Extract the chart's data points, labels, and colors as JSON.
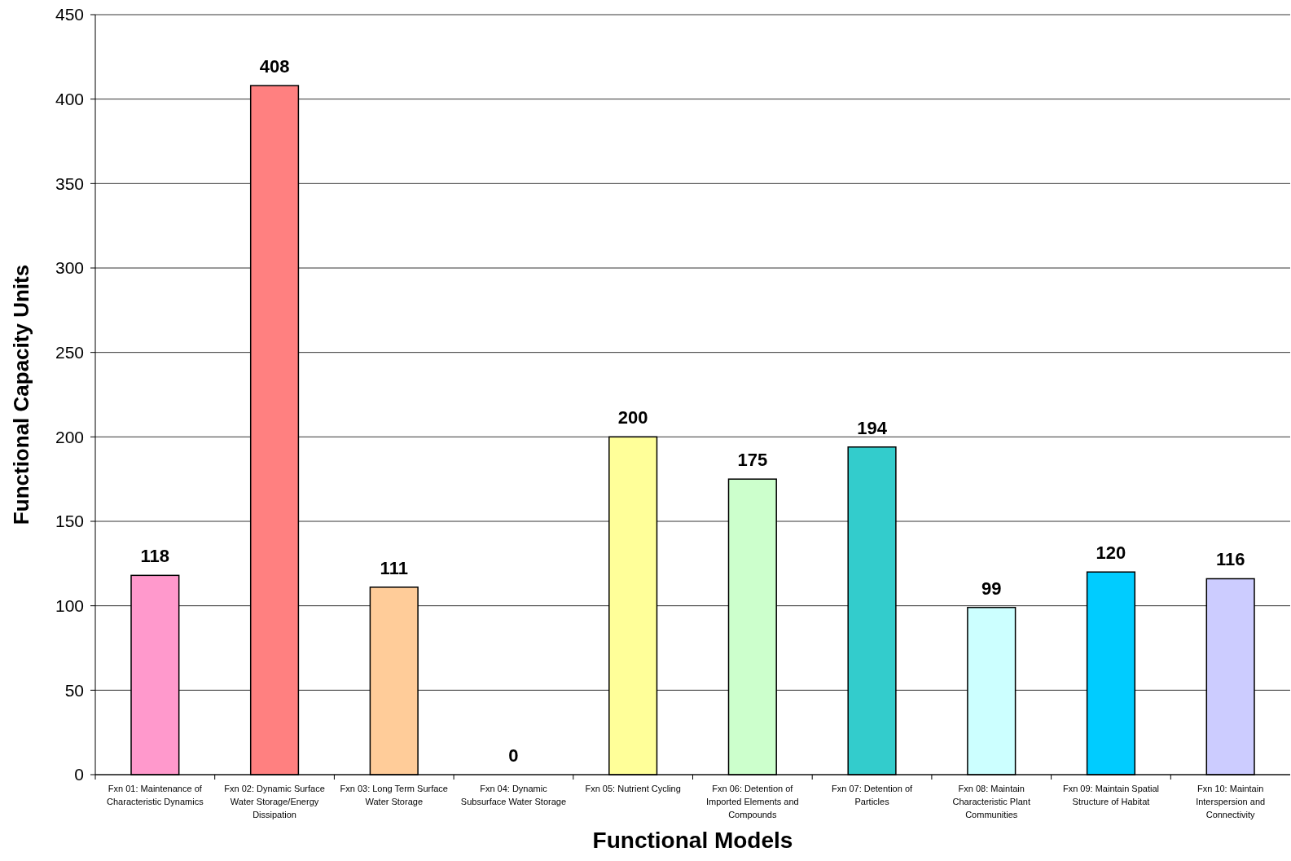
{
  "chart_data": {
    "type": "bar",
    "xlabel": "Functional Models",
    "ylabel": "Functional Capacity Units",
    "categories": [
      "Fxn 01: Maintenance of Characteristic Dynamics",
      "Fxn 02: Dynamic Surface Water Storage/Energy Dissipation",
      "Fxn 03: Long Term Surface Water Storage",
      "Fxn 04: Dynamic Subsurface Water Storage",
      "Fxn 05: Nutrient Cycling",
      "Fxn 06: Detention of Imported Elements and Compounds",
      "Fxn 07: Detention of Particles",
      "Fxn 08: Maintain Characteristic Plant Communities",
      "Fxn 09: Maintain Spatial Structure of Habitat",
      "Fxn 10: Maintain Interspersion and Connectivity"
    ],
    "values": [
      118,
      408,
      111,
      0,
      200,
      175,
      194,
      99,
      120,
      116
    ],
    "colors": [
      "#ff99cc",
      "#ff8080",
      "#ffcc99",
      "#ffffff",
      "#ffff99",
      "#ccffcc",
      "#33cccc",
      "#ccffff",
      "#00ccff",
      "#ccccff"
    ],
    "ylim": [
      0,
      450
    ],
    "yticks": [
      0,
      50,
      100,
      150,
      200,
      250,
      300,
      350,
      400,
      450
    ],
    "grid": "y",
    "data_labels": true
  }
}
